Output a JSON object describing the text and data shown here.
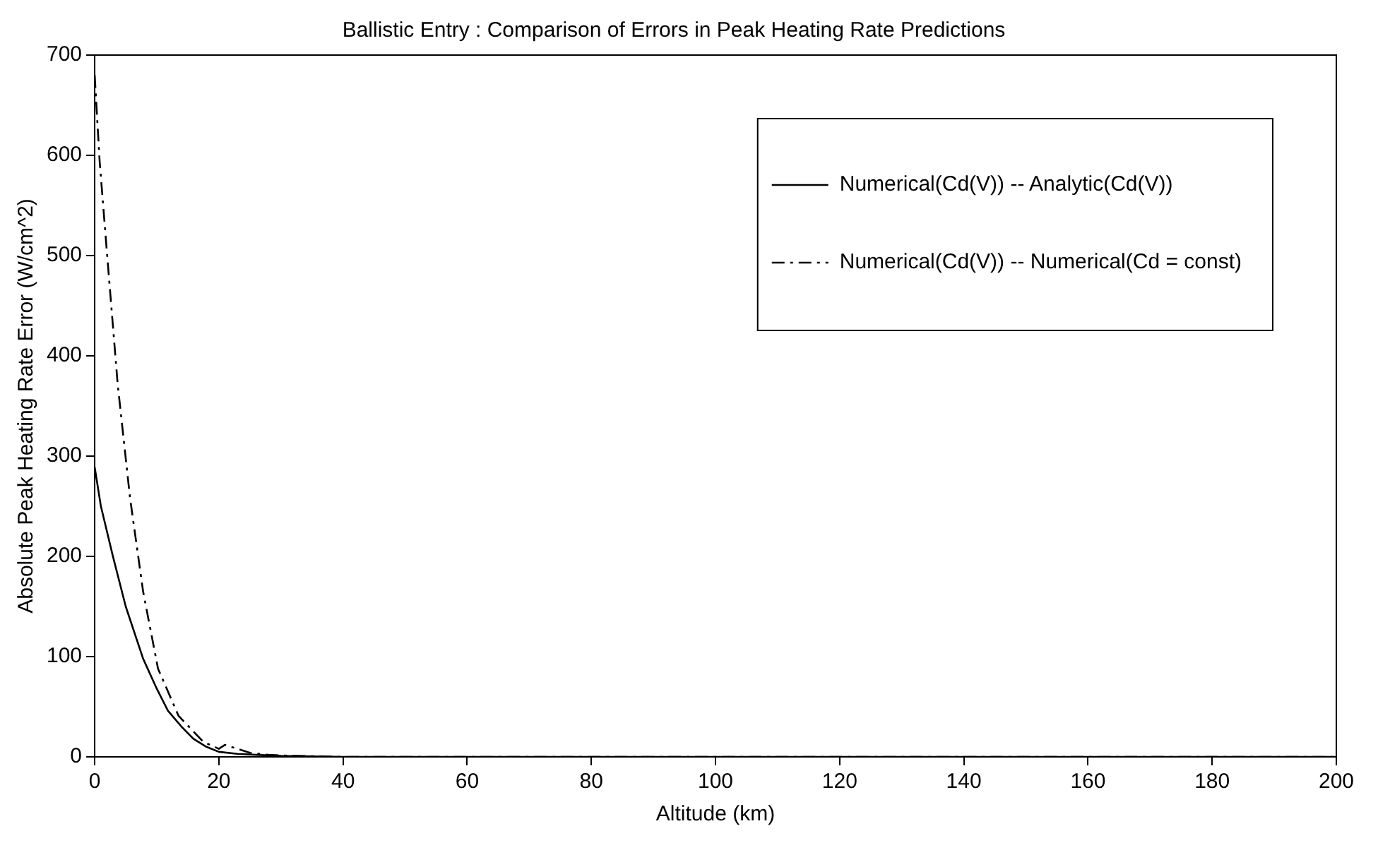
{
  "chart_data": {
    "type": "line",
    "title": "Ballistic Entry : Comparison of Errors in Peak Heating Rate Predictions",
    "xlabel": "Altitude (km)",
    "ylabel": "Absolute Peak Heating Rate Error (W/cm^2)",
    "xlim": [
      0,
      200
    ],
    "xticks": [
      0,
      20,
      40,
      60,
      80,
      100,
      120,
      140,
      160,
      180,
      200
    ],
    "ylim": [
      0,
      700
    ],
    "yticks": [
      0,
      100,
      200,
      300,
      400,
      500,
      600,
      700
    ],
    "grid": false,
    "legend": "top right",
    "marker": "none",
    "series": [
      {
        "name": "Numerical(Cd(V)) -- Analytic(Cd(V))",
        "color": "#000000",
        "line_style": "solid",
        "x": [
          0,
          1,
          2.9,
          5,
          7.8,
          10,
          11.8,
          14,
          15.9,
          18,
          20,
          23,
          26,
          30,
          40,
          60,
          100,
          150,
          200
        ],
        "values": [
          289,
          250,
          201,
          150,
          98,
          68,
          46,
          30,
          18,
          10,
          5,
          3,
          2,
          1,
          0,
          0,
          0,
          0,
          0
        ]
      },
      {
        "name": "Numerical(Cd(V)) -- Numerical(Cd = const)",
        "color": "#000000",
        "line_style": "dashed",
        "x": [
          0,
          0.8,
          2,
          3.7,
          5.7,
          7.8,
          10.2,
          13.5,
          17.5,
          20,
          21,
          23,
          25,
          28,
          32,
          40,
          60,
          100,
          150,
          200
        ],
        "values": [
          680,
          594,
          501,
          372,
          258,
          165,
          88,
          41,
          15,
          8,
          12,
          8,
          4,
          2,
          1,
          0,
          0,
          0,
          0,
          0
        ]
      }
    ]
  }
}
